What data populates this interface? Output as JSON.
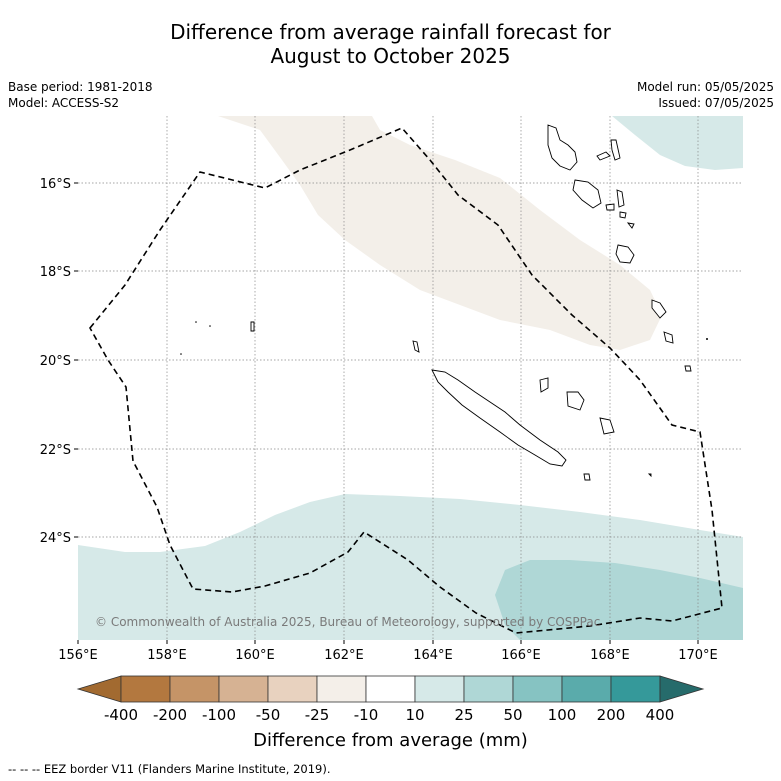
{
  "title": {
    "line1": "Difference from average rainfall forecast for",
    "line2": "August to October 2025"
  },
  "meta": {
    "base_period": "Base period: 1981-2018",
    "model": "Model: ACCESS-S2",
    "model_run": "Model run: 05/05/2025",
    "issued": "Issued: 07/05/2025"
  },
  "map": {
    "lat_labels": [
      "16°S",
      "18°S",
      "20°S",
      "22°S",
      "24°S"
    ],
    "lon_labels": [
      "156°E",
      "158°E",
      "160°E",
      "162°E",
      "164°E",
      "166°E",
      "168°E",
      "170°E"
    ],
    "copyright": "© Commonwealth of Australia 2025, Bureau of Meteorology, supported by COSPPac"
  },
  "colorbar": {
    "ticks": [
      "-400",
      "-200",
      "-100",
      "-50",
      "-25",
      "-10",
      "10",
      "25",
      "50",
      "100",
      "200",
      "400"
    ],
    "colors": [
      "#a26a30",
      "#b3783f",
      "#c59467",
      "#d6b293",
      "#e8d2bf",
      "#f4efe9",
      "#ffffff",
      "#d6e9e8",
      "#afd7d6",
      "#86c3c2",
      "#5aabab",
      "#35999a",
      "#266b6b"
    ],
    "title": "Difference from average (mm)"
  },
  "footnote": "--  --  -- EEZ border V11 (Flanders Marine Institute, 2019)."
}
